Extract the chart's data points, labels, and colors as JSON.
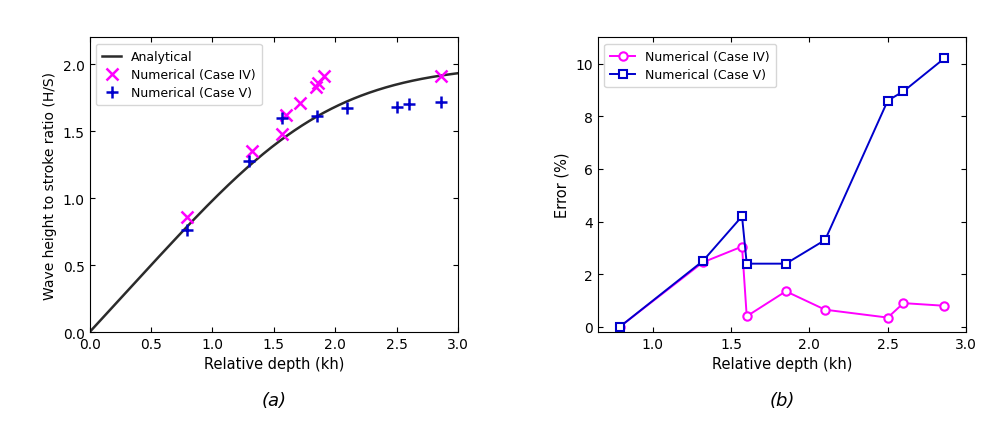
{
  "case4_kh": [
    0.79,
    1.32,
    1.57,
    1.6,
    1.71,
    1.84,
    1.86,
    1.91,
    2.86
  ],
  "case4_hs": [
    0.86,
    1.35,
    1.48,
    1.62,
    1.71,
    1.83,
    1.86,
    1.91,
    1.91
  ],
  "case5_kh": [
    0.79,
    1.3,
    1.57,
    1.85,
    2.1,
    2.5,
    2.6,
    2.86
  ],
  "case5_hs": [
    0.76,
    1.28,
    1.6,
    1.61,
    1.67,
    1.68,
    1.7,
    1.72
  ],
  "err4_kh": [
    0.79,
    1.32,
    1.57,
    1.6,
    1.85,
    2.1,
    2.5,
    2.6,
    2.86
  ],
  "err4_val": [
    0.0,
    2.45,
    3.05,
    0.4,
    1.35,
    0.65,
    0.35,
    0.9,
    0.8
  ],
  "err5_kh": [
    0.79,
    1.32,
    1.57,
    1.6,
    1.85,
    2.1,
    2.5,
    2.6,
    2.86
  ],
  "err5_val": [
    0.0,
    2.5,
    4.2,
    2.4,
    2.4,
    3.3,
    8.6,
    8.95,
    10.2
  ],
  "left_xlim": [
    0.0,
    3.0
  ],
  "left_ylim": [
    0.0,
    2.2
  ],
  "left_xticks": [
    0.0,
    0.5,
    1.0,
    1.5,
    2.0,
    2.5,
    3.0
  ],
  "left_yticks": [
    0.0,
    0.5,
    1.0,
    1.5,
    2.0
  ],
  "right_xlim": [
    0.65,
    3.0
  ],
  "right_ylim": [
    -0.2,
    11.0
  ],
  "right_xticks": [
    1.0,
    1.5,
    2.0,
    2.5,
    3.0
  ],
  "right_yticks": [
    0,
    2,
    4,
    6,
    8,
    10
  ],
  "xlabel": "Relative depth (kh)",
  "left_ylabel": "Wave height to stroke ratio (H/S)",
  "right_ylabel": "Error (%)",
  "analytical_color": "#2b2b2b",
  "case4_color": "#ff00ff",
  "case5_color": "#0000cc",
  "label_a": "(a)",
  "label_b": "(b)",
  "legend_left": [
    "Analytical",
    "Numerical (Case IV)",
    "Numerical (Case V)"
  ],
  "legend_right": [
    "Numerical (Case IV)",
    "Numerical (Case V)"
  ]
}
